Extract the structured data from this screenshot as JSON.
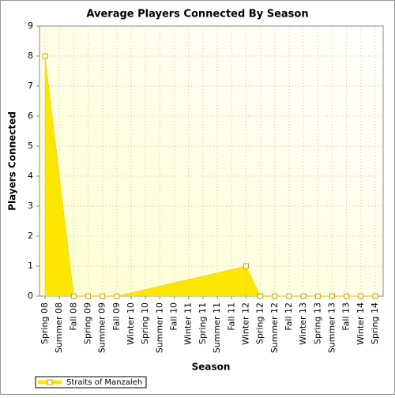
{
  "chart_data": {
    "type": "area",
    "title": "Average Players Connected By Season",
    "x_label": "Season",
    "y_label": "Players Connected",
    "categories": [
      "Spring 08",
      "Summer 08",
      "Fall 08",
      "Spring 09",
      "Summer 09",
      "Fall 09",
      "Winter 10",
      "Spring 10",
      "Summer 10",
      "Fall 10",
      "Winter 11",
      "Spring 11",
      "Summer 11",
      "Fall 11",
      "Winter 12",
      "Spring 12",
      "Summer 12",
      "Fall 12",
      "Winter 13",
      "Spring 13",
      "Summer 13",
      "Fall 13",
      "Winter 14",
      "Spring 14"
    ],
    "series": [
      {
        "name": "Straits of Manzaleh",
        "color": "#ffe600",
        "values": [
          8,
          null,
          0,
          0,
          0,
          0,
          null,
          null,
          null,
          null,
          null,
          null,
          null,
          null,
          1,
          0,
          0,
          0,
          0,
          0,
          0,
          0,
          0,
          0
        ]
      }
    ],
    "ylim": [
      0,
      9
    ],
    "yticks": [
      0,
      1,
      2,
      3,
      4,
      5,
      6,
      7,
      8,
      9
    ],
    "grid": true
  }
}
